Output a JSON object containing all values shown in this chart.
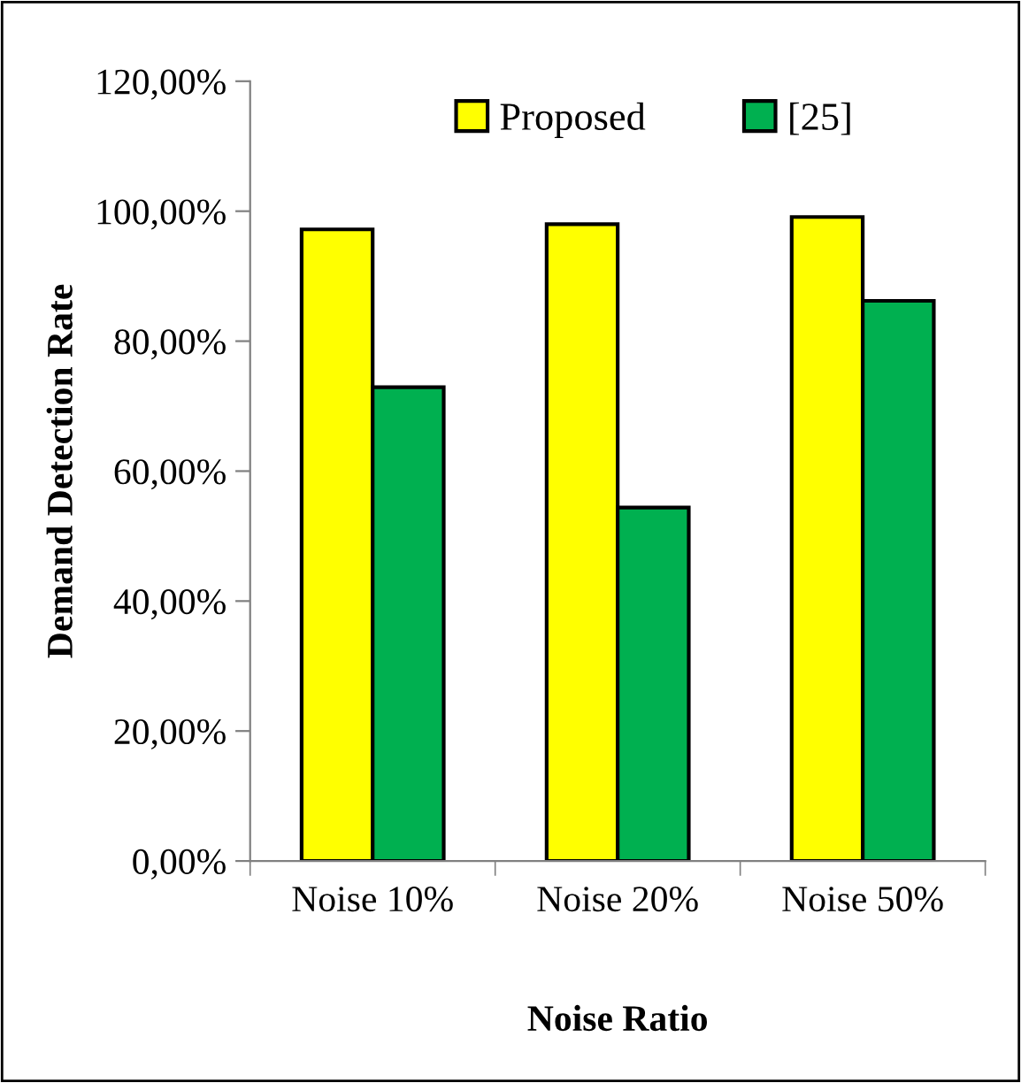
{
  "chart_data": {
    "type": "bar",
    "xlabel": "Noise Ratio",
    "ylabel": "Demand Detection Rate",
    "categories": [
      "Noise 10%",
      "Noise 20%",
      "Noise 50%"
    ],
    "series": [
      {
        "name": "Proposed",
        "color": "#ffff00",
        "values": [
          97.2,
          98.0,
          99.1
        ]
      },
      {
        "name": "[25]",
        "color": "#00b050",
        "values": [
          72.9,
          54.4,
          86.2
        ]
      }
    ],
    "ylim": [
      0,
      120
    ],
    "yticks": [
      {
        "value": 0,
        "label": "0,00%"
      },
      {
        "value": 20,
        "label": "20,00%"
      },
      {
        "value": 40,
        "label": "40,00%"
      },
      {
        "value": 60,
        "label": "60,00%"
      },
      {
        "value": 80,
        "label": "80,00%"
      },
      {
        "value": 100,
        "label": "100,00%"
      },
      {
        "value": 120,
        "label": "120,00%"
      }
    ],
    "grid": false,
    "legend": "top"
  }
}
